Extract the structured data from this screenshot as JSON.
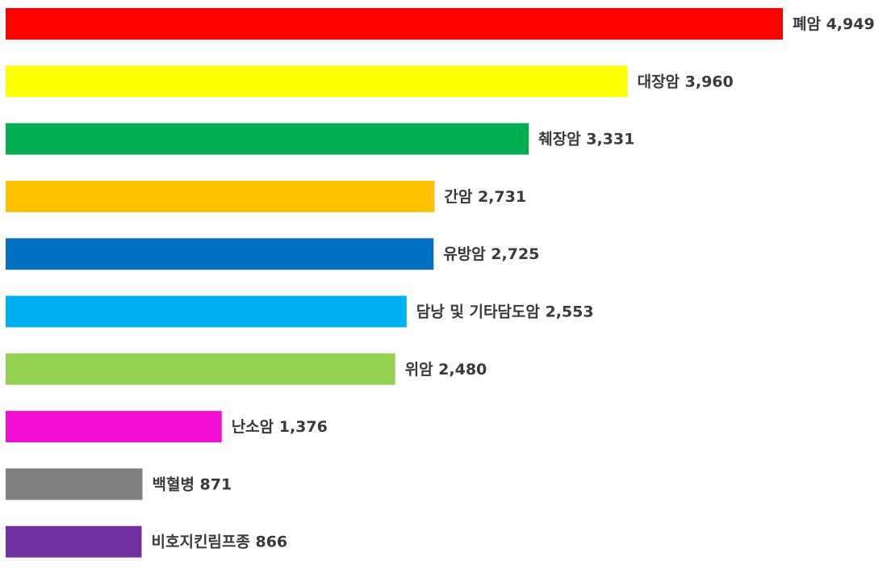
{
  "chart_data": {
    "type": "bar",
    "orientation": "horizontal",
    "categories": [
      "폐암",
      "대장암",
      "췌장암",
      "간암",
      "유방암",
      "담낭 및 기타담도암",
      "위암",
      "난소암",
      "백혈병",
      "비호지킨림프종"
    ],
    "values": [
      4949,
      3960,
      3331,
      2731,
      2725,
      2553,
      2480,
      1376,
      871,
      866
    ],
    "value_labels": [
      "4,949",
      "3,960",
      "3,331",
      "2,731",
      "2,725",
      "2,553",
      "2,480",
      "1,376",
      "871",
      "866"
    ],
    "colors": [
      "#ff0000",
      "#ffff00",
      "#00b050",
      "#ffc000",
      "#0070c0",
      "#00b0f0",
      "#92d050",
      "#f00fd2",
      "#7f7f7f",
      "#7030a0"
    ],
    "xlim": [
      0,
      5000
    ],
    "grid": false,
    "legend": "none"
  }
}
